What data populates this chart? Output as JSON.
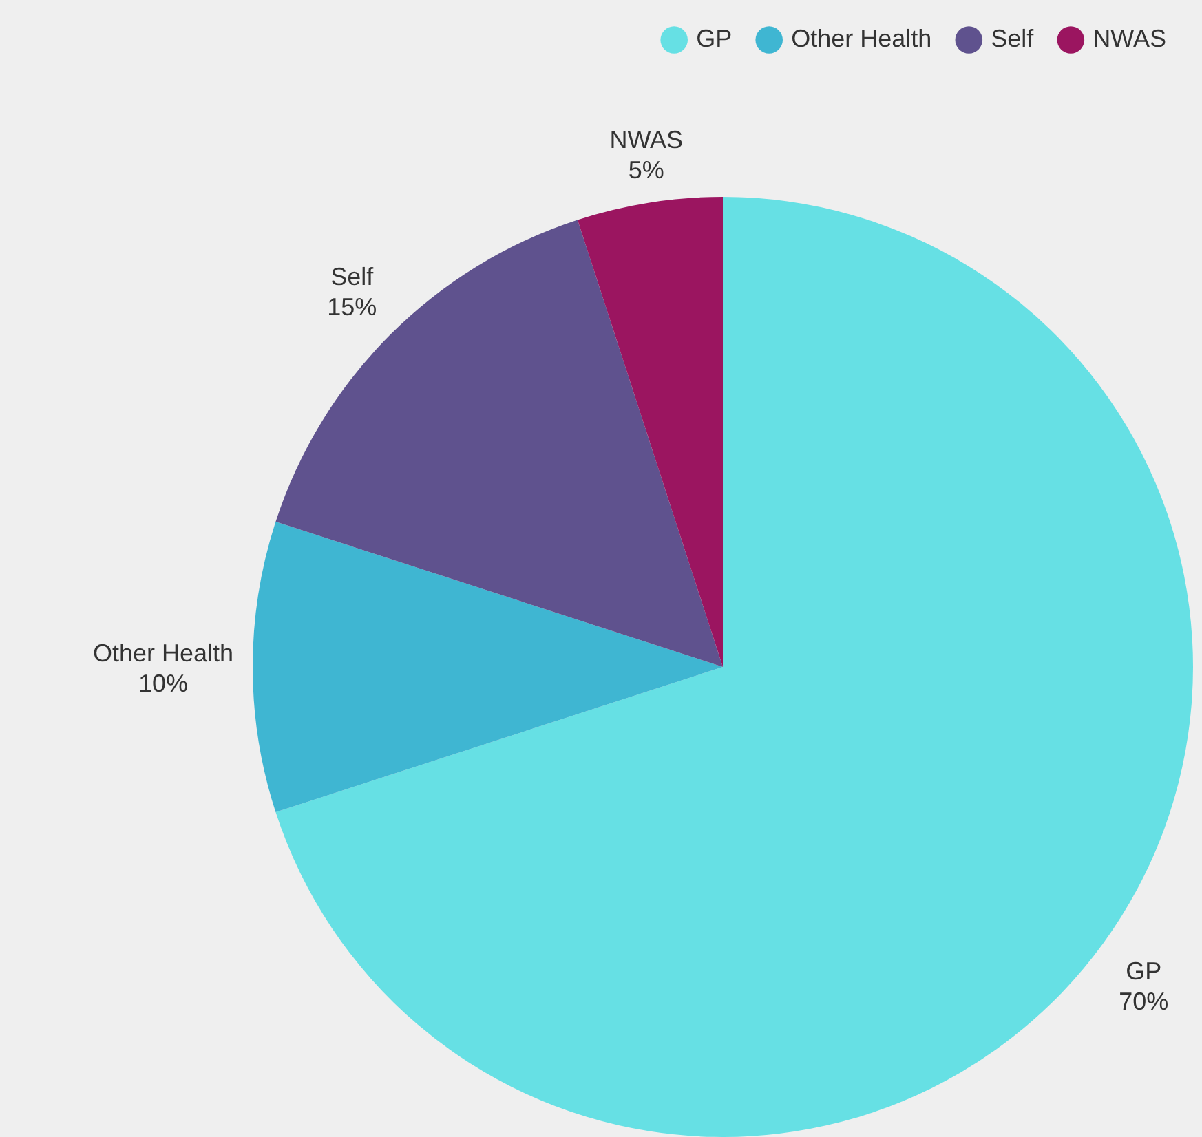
{
  "chart_data": {
    "type": "pie",
    "categories": [
      "GP",
      "Other Health",
      "Self",
      "NWAS"
    ],
    "values": [
      70,
      10,
      15,
      5
    ],
    "colors": [
      "#66e0e4",
      "#3fb6d2",
      "#5f528e",
      "#9b1560"
    ],
    "value_labels": [
      "70%",
      "10%",
      "15%",
      "5%"
    ],
    "legend": "top right"
  }
}
